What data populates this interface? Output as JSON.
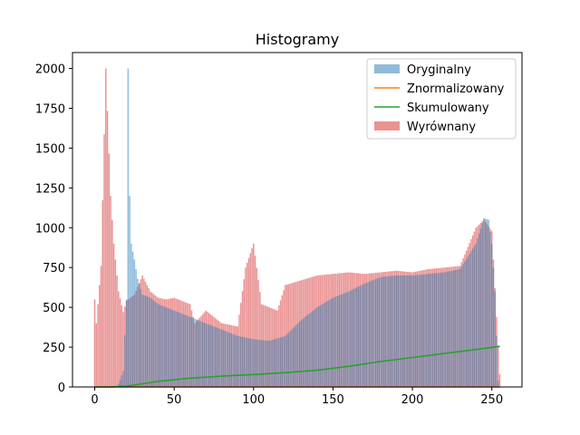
{
  "chart_data": {
    "type": "bar",
    "title": "Histogramy",
    "xlabel": "",
    "ylabel": "",
    "xlim": [
      -14,
      269
    ],
    "ylim": [
      0,
      2100
    ],
    "x_ticks": [
      "0",
      "50",
      "100",
      "150",
      "200",
      "250"
    ],
    "y_ticks": [
      "0",
      "250",
      "500",
      "750",
      "1000",
      "1250",
      "1500",
      "1750",
      "2000"
    ],
    "legend_position": "top-right",
    "grid": false,
    "series": [
      {
        "name": "Oryginalny",
        "kind": "bar",
        "color": "#1f77b4",
        "alpha": 0.5,
        "sample_x": [
          15,
          18,
          20,
          21,
          22,
          23,
          25,
          27,
          30,
          35,
          40,
          50,
          60,
          70,
          80,
          90,
          100,
          110,
          120,
          130,
          140,
          150,
          160,
          170,
          180,
          190,
          200,
          210,
          220,
          230,
          240,
          245,
          248,
          250,
          252,
          254
        ],
        "sample_y": [
          20,
          100,
          550,
          2000,
          1200,
          900,
          800,
          680,
          580,
          560,
          520,
          480,
          440,
          400,
          360,
          320,
          300,
          290,
          320,
          420,
          500,
          560,
          600,
          650,
          690,
          700,
          700,
          710,
          720,
          740,
          900,
          1060,
          1050,
          900,
          600,
          40
        ]
      },
      {
        "name": "Znormalizowany",
        "kind": "line",
        "color": "#ff7f0e",
        "x": [
          0,
          255
        ],
        "y": [
          0,
          0
        ]
      },
      {
        "name": "Skumulowany",
        "kind": "line",
        "color": "#2ca02c",
        "x": [
          0,
          10,
          20,
          30,
          40,
          60,
          80,
          100,
          120,
          140,
          160,
          180,
          200,
          220,
          240,
          255
        ],
        "y": [
          0,
          0,
          5,
          20,
          35,
          55,
          68,
          78,
          90,
          105,
          130,
          160,
          185,
          210,
          235,
          255
        ]
      },
      {
        "name": "Wyrównany",
        "kind": "bar",
        "color": "#d62728",
        "alpha": 0.5,
        "sample_x": [
          0,
          1,
          4,
          7,
          10,
          12,
          15,
          18,
          20,
          25,
          30,
          35,
          40,
          45,
          50,
          60,
          63,
          70,
          80,
          90,
          95,
          100,
          105,
          110,
          115,
          120,
          130,
          140,
          150,
          160,
          170,
          180,
          190,
          200,
          210,
          220,
          230,
          240,
          245,
          250,
          255
        ],
        "sample_y": [
          550,
          400,
          760,
          2000,
          1200,
          900,
          600,
          470,
          540,
          580,
          700,
          600,
          560,
          550,
          560,
          520,
          400,
          480,
          400,
          380,
          750,
          900,
          520,
          500,
          480,
          640,
          670,
          700,
          710,
          720,
          710,
          720,
          730,
          720,
          740,
          750,
          760,
          1000,
          1050,
          980,
          80
        ]
      }
    ],
    "legend": [
      "Oryginalny",
      "Znormalizowany",
      "Skumulowany",
      "Wyrównany"
    ]
  }
}
